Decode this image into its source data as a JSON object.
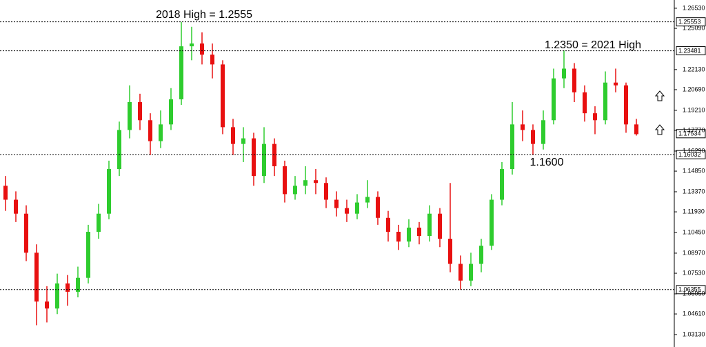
{
  "chart_data": {
    "type": "candlestick",
    "annotations": [
      {
        "text": "2018 High = 1.2555"
      },
      {
        "text": "1.2350 = 2021 High"
      },
      {
        "text": "1.1600"
      }
    ],
    "open": [
      1.138,
      1.128,
      1.118,
      1.09,
      1.055,
      1.05,
      1.068,
      1.062,
      1.072,
      1.105,
      1.118,
      1.15,
      1.178,
      1.198,
      1.185,
      1.17,
      1.182,
      1.2,
      1.238,
      1.24,
      1.232,
      1.225,
      1.18,
      1.168,
      1.172,
      1.145,
      1.168,
      1.152,
      1.132,
      1.138,
      1.142,
      1.14,
      1.128,
      1.122,
      1.118,
      1.126,
      1.13,
      1.115,
      1.105,
      1.098,
      1.108,
      1.102,
      1.118,
      1.1,
      1.082,
      1.07,
      1.082,
      1.095,
      1.128,
      1.15,
      1.182,
      1.178,
      1.168,
      1.185,
      1.215,
      1.222,
      1.205,
      1.19,
      1.185,
      1.212,
      1.21,
      1.182
    ],
    "high": [
      1.145,
      1.134,
      1.124,
      1.096,
      1.066,
      1.075,
      1.074,
      1.08,
      1.11,
      1.125,
      1.156,
      1.184,
      1.21,
      1.204,
      1.19,
      1.192,
      1.208,
      1.2555,
      1.252,
      1.248,
      1.24,
      1.228,
      1.186,
      1.18,
      1.176,
      1.18,
      1.172,
      1.156,
      1.145,
      1.152,
      1.15,
      1.144,
      1.134,
      1.128,
      1.132,
      1.142,
      1.134,
      1.12,
      1.11,
      1.114,
      1.112,
      1.124,
      1.122,
      1.14,
      1.088,
      1.09,
      1.1,
      1.132,
      1.155,
      1.198,
      1.192,
      1.182,
      1.192,
      1.222,
      1.235,
      1.226,
      1.21,
      1.195,
      1.22,
      1.222,
      1.212,
      1.186
    ],
    "low": [
      1.12,
      1.112,
      1.084,
      1.038,
      1.04,
      1.046,
      1.052,
      1.058,
      1.068,
      1.1,
      1.114,
      1.145,
      1.172,
      1.178,
      1.16,
      1.165,
      1.178,
      1.196,
      1.228,
      1.225,
      1.215,
      1.175,
      1.16,
      1.155,
      1.138,
      1.14,
      1.145,
      1.126,
      1.128,
      1.132,
      1.132,
      1.122,
      1.116,
      1.112,
      1.114,
      1.122,
      1.11,
      1.098,
      1.092,
      1.094,
      1.096,
      1.098,
      1.094,
      1.076,
      1.0636,
      1.066,
      1.076,
      1.092,
      1.124,
      1.146,
      1.17,
      1.16,
      1.164,
      1.182,
      1.208,
      1.198,
      1.184,
      1.175,
      1.182,
      1.205,
      1.176,
      1.174
    ],
    "close": [
      1.128,
      1.118,
      1.09,
      1.055,
      1.05,
      1.068,
      1.062,
      1.072,
      1.105,
      1.118,
      1.15,
      1.178,
      1.198,
      1.185,
      1.17,
      1.182,
      1.2,
      1.238,
      1.24,
      1.232,
      1.225,
      1.18,
      1.168,
      1.172,
      1.145,
      1.168,
      1.152,
      1.132,
      1.138,
      1.142,
      1.14,
      1.128,
      1.122,
      1.118,
      1.126,
      1.13,
      1.115,
      1.105,
      1.098,
      1.108,
      1.102,
      1.118,
      1.1,
      1.082,
      1.07,
      1.082,
      1.095,
      1.128,
      1.15,
      1.182,
      1.178,
      1.168,
      1.185,
      1.215,
      1.222,
      1.205,
      1.19,
      1.185,
      1.212,
      1.21,
      1.182,
      1.175
    ],
    "up_color": "#2ecc2e",
    "down_color": "#e81010",
    "levels": [
      {
        "value": 1.25553,
        "label": "1.25553"
      },
      {
        "value": 1.23481,
        "label": "1.23481"
      },
      {
        "value": 1.16032,
        "label": "1.16032"
      },
      {
        "value": 1.06355,
        "label": "1.06355"
      }
    ],
    "current_price": {
      "value": 1.17534,
      "label": "1.17534"
    },
    "ylim": [
      1.0224,
      1.2712
    ],
    "yticks": [
      {
        "value": 1.2653,
        "label": "1.26530"
      },
      {
        "value": 1.2509,
        "label": "1.25090"
      },
      {
        "value": 1.2213,
        "label": "1.22130"
      },
      {
        "value": 1.2069,
        "label": "1.20690"
      },
      {
        "value": 1.1921,
        "label": "1.19210"
      },
      {
        "value": 1.1777,
        "label": "1.17770"
      },
      {
        "value": 1.1629,
        "label": "1.16290"
      },
      {
        "value": 1.1485,
        "label": "1.14850"
      },
      {
        "value": 1.1337,
        "label": "1.13370"
      },
      {
        "value": 1.1193,
        "label": "1.11930"
      },
      {
        "value": 1.1045,
        "label": "1.10450"
      },
      {
        "value": 1.0897,
        "label": "1.08970"
      },
      {
        "value": 1.0753,
        "label": "1.07530"
      },
      {
        "value": 1.0605,
        "label": "1.06050"
      },
      {
        "value": 1.0461,
        "label": "1.04610"
      },
      {
        "value": 1.0313,
        "label": "1.03130"
      }
    ]
  }
}
